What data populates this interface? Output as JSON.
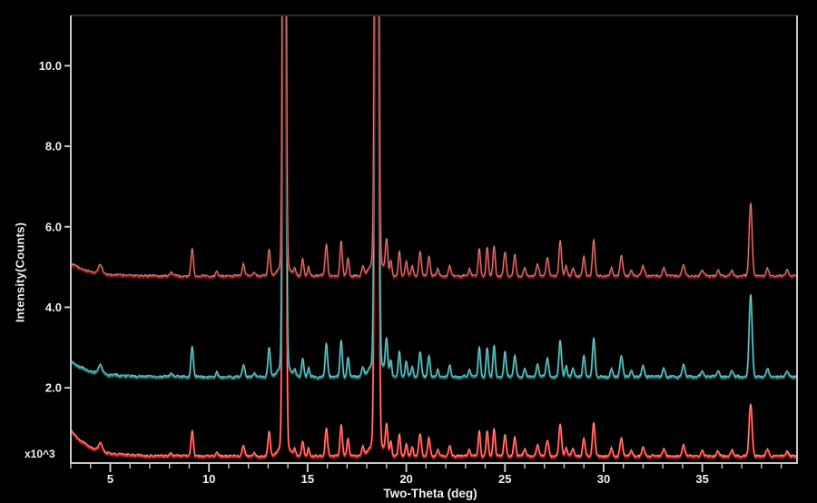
{
  "chart_data": {
    "type": "line",
    "title": "",
    "xlabel": "Two-Theta (deg)",
    "ylabel": "Intensity(Counts)",
    "y_scale_label": "x10^3",
    "xlim": [
      3,
      39.8
    ],
    "ylim": [
      0.13,
      11.25
    ],
    "x_major_ticks": [
      5,
      10,
      15,
      20,
      25,
      30,
      35
    ],
    "x_tick_labels": [
      "5",
      "10",
      "15",
      "20",
      "25",
      "30",
      "35"
    ],
    "x_minor_tick_step": 1,
    "y_major_ticks": [
      2,
      4,
      6,
      8,
      10
    ],
    "y_tick_labels": [
      "2.0",
      "4.0",
      "6.0",
      "8.0",
      "10.0"
    ],
    "grid": false,
    "legend": "none",
    "colors": {
      "background": "#000000",
      "axis": "#c6c6c6",
      "frame_top": "#2b2b2b",
      "text": "#f2f2f2"
    },
    "series": [
      {
        "name": "pattern-top-dark-red",
        "color": "#8e1414",
        "highlight": "#e7b3ab",
        "baseline": 4.75,
        "decay_amplitude": 0.32,
        "peak_scale": 1.0,
        "peak_overrides": {
          "37.45": 1.8
        }
      },
      {
        "name": "pattern-middle-teal",
        "color": "#0e8181",
        "highlight": "#aee3e3",
        "baseline": 2.25,
        "decay_amplitude": 0.42,
        "peak_scale": 1.05,
        "peak_overrides": {
          "37.45": 2.05
        }
      },
      {
        "name": "pattern-bottom-red",
        "color": "#ee1a1a",
        "highlight": "#ffc4b4",
        "baseline": 0.28,
        "decay_amplitude": 0.65,
        "peak_scale": 0.9,
        "peak_overrides": {
          "37.45": 1.3
        }
      }
    ],
    "peaks_comment": "each peak = [two_theta_deg, height_x10^3_counts, sigma_deg]; heights ~30 are clipped at plot top",
    "peaks": [
      [
        4.5,
        0.22,
        0.1
      ],
      [
        8.1,
        0.07,
        0.07
      ],
      [
        9.15,
        0.7,
        0.06
      ],
      [
        10.4,
        0.13,
        0.055
      ],
      [
        11.75,
        0.3,
        0.065
      ],
      [
        12.3,
        0.09,
        0.055
      ],
      [
        13.05,
        0.68,
        0.06
      ],
      [
        13.82,
        30,
        0.065
      ],
      [
        13.82,
        0.35,
        0.25
      ],
      [
        14.35,
        0.16,
        0.05
      ],
      [
        14.75,
        0.42,
        0.055
      ],
      [
        15.05,
        0.22,
        0.05
      ],
      [
        15.95,
        0.78,
        0.06
      ],
      [
        16.7,
        0.85,
        0.06
      ],
      [
        17.05,
        0.46,
        0.055
      ],
      [
        17.8,
        0.22,
        0.06
      ],
      [
        18.5,
        30,
        0.075
      ],
      [
        18.5,
        0.45,
        0.3
      ],
      [
        19.0,
        0.8,
        0.06
      ],
      [
        19.22,
        0.38,
        0.05
      ],
      [
        19.65,
        0.6,
        0.055
      ],
      [
        20.0,
        0.36,
        0.055
      ],
      [
        20.3,
        0.25,
        0.055
      ],
      [
        20.7,
        0.6,
        0.065
      ],
      [
        21.15,
        0.5,
        0.06
      ],
      [
        21.6,
        0.18,
        0.05
      ],
      [
        22.2,
        0.28,
        0.06
      ],
      [
        23.2,
        0.18,
        0.055
      ],
      [
        23.7,
        0.7,
        0.055
      ],
      [
        24.1,
        0.7,
        0.055
      ],
      [
        24.45,
        0.75,
        0.055
      ],
      [
        25.0,
        0.6,
        0.06
      ],
      [
        25.5,
        0.52,
        0.06
      ],
      [
        26.0,
        0.2,
        0.06
      ],
      [
        26.65,
        0.3,
        0.065
      ],
      [
        27.15,
        0.45,
        0.065
      ],
      [
        27.8,
        0.85,
        0.065
      ],
      [
        28.1,
        0.25,
        0.055
      ],
      [
        28.45,
        0.2,
        0.06
      ],
      [
        29.0,
        0.5,
        0.06
      ],
      [
        29.5,
        0.9,
        0.065
      ],
      [
        30.4,
        0.2,
        0.06
      ],
      [
        30.9,
        0.5,
        0.07
      ],
      [
        31.4,
        0.15,
        0.06
      ],
      [
        32.0,
        0.25,
        0.07
      ],
      [
        33.05,
        0.2,
        0.07
      ],
      [
        34.05,
        0.3,
        0.07
      ],
      [
        35.0,
        0.15,
        0.07
      ],
      [
        35.8,
        0.13,
        0.07
      ],
      [
        36.5,
        0.15,
        0.07
      ],
      [
        37.45,
        1.8,
        0.075
      ],
      [
        38.3,
        0.2,
        0.07
      ],
      [
        39.3,
        0.14,
        0.07
      ]
    ]
  }
}
